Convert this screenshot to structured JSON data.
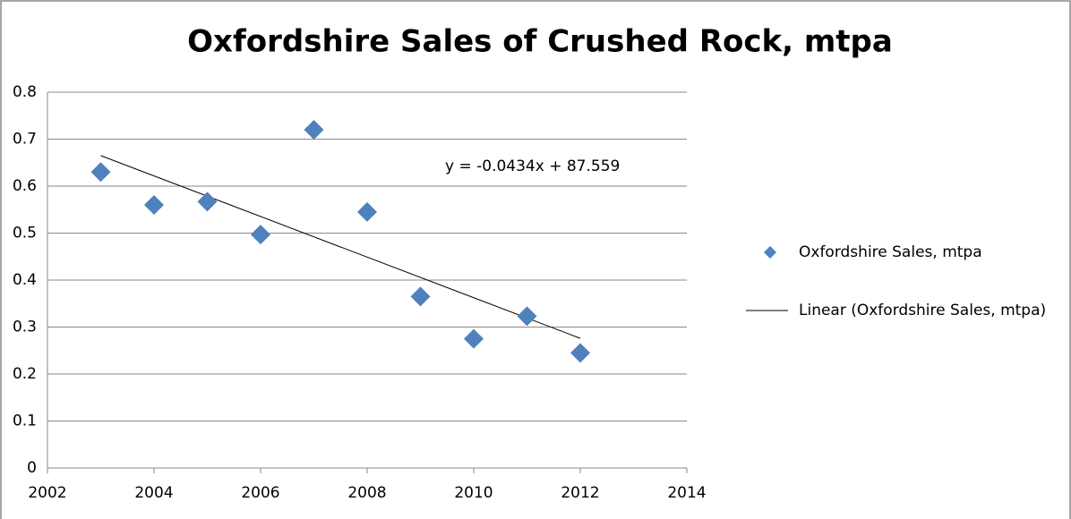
{
  "chart_data": {
    "type": "scatter",
    "title": "Oxfordshire Sales of Crushed Rock, mtpa",
    "annotation": "y = -0.0434x + 87.559",
    "series": [
      {
        "name": "Oxfordshire Sales, mtpa",
        "color": "#4f81bd",
        "x": [
          2003,
          2004,
          2005,
          2006,
          2007,
          2008,
          2009,
          2010,
          2011,
          2012
        ],
        "values": [
          0.63,
          0.56,
          0.567,
          0.497,
          0.72,
          0.545,
          0.365,
          0.275,
          0.323,
          0.245
        ]
      },
      {
        "name": "Linear (Oxfordshire Sales, mtpa)",
        "color": "#000000",
        "x": [
          2003,
          2012
        ],
        "values": [
          0.665,
          0.276
        ]
      }
    ],
    "xlim": [
      2002,
      2014
    ],
    "xticks": [
      2002,
      2004,
      2006,
      2008,
      2010,
      2012,
      2014
    ],
    "ylim": [
      0,
      0.8
    ],
    "yticks": [
      0,
      0.1,
      0.2,
      0.3,
      0.4,
      0.5,
      0.6,
      0.7,
      0.8
    ],
    "grid": true
  }
}
